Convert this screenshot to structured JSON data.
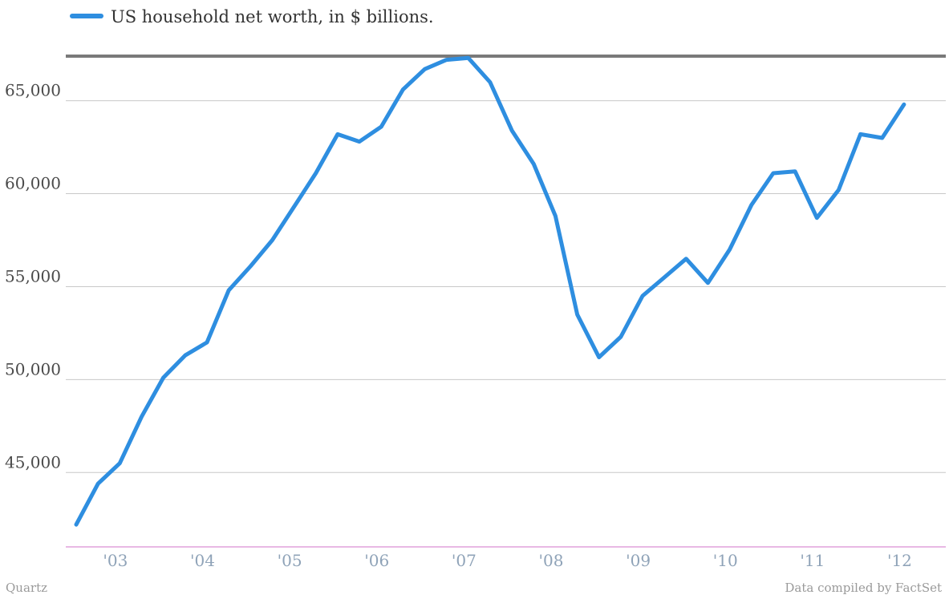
{
  "chart_data": {
    "type": "line",
    "legend": {
      "placement": "top-left",
      "color": "#2e8ee0"
    },
    "footer": {
      "source": "Quartz",
      "credit": "Data compiled by FactSet"
    },
    "xlabel": "",
    "ylabel": "",
    "ylim": [
      41000,
      67400
    ],
    "yticks": [
      45000,
      50000,
      55000,
      60000,
      65000
    ],
    "ytick_labels": [
      "45,000",
      "50,000",
      "55,000",
      "60,000",
      "65,000"
    ],
    "xticks": [
      2003,
      2004,
      2005,
      2006,
      2007,
      2008,
      2009,
      2010,
      2011,
      2012
    ],
    "xtick_labels": [
      "'03",
      "'04",
      "'05",
      "'06",
      "'07",
      "'08",
      "'09",
      "'10",
      "'11",
      "'12"
    ],
    "xlim": [
      2002.5,
      2012.6
    ],
    "grid": true,
    "colors": {
      "line": "#2e8ee0",
      "grid": "#c8c8c8",
      "top_rule": "#7a7a7a",
      "baseline": "#d070c8"
    },
    "series": [
      {
        "name": "US household net worth, in $ billions.",
        "x": [
          2002.62,
          2002.87,
          2003.12,
          2003.37,
          2003.62,
          2003.87,
          2004.12,
          2004.37,
          2004.62,
          2004.87,
          2005.12,
          2005.37,
          2005.62,
          2005.87,
          2006.12,
          2006.37,
          2006.62,
          2006.87,
          2007.12,
          2007.37,
          2007.62,
          2007.87,
          2008.12,
          2008.37,
          2008.62,
          2008.87,
          2009.12,
          2009.37,
          2009.62,
          2009.87,
          2010.12,
          2010.37,
          2010.62,
          2010.87,
          2011.12,
          2011.37,
          2011.62,
          2011.87,
          2012.12
        ],
        "values": [
          42200,
          44400,
          45500,
          48000,
          50100,
          51300,
          52000,
          54800,
          56100,
          57500,
          59300,
          61100,
          63200,
          62800,
          63600,
          65600,
          66700,
          67200,
          67300,
          66000,
          63400,
          61600,
          58800,
          53500,
          51200,
          52300,
          54500,
          55500,
          56500,
          55200,
          57000,
          59400,
          61100,
          61200,
          58700,
          60200,
          63200,
          63000,
          64800
        ]
      }
    ]
  }
}
